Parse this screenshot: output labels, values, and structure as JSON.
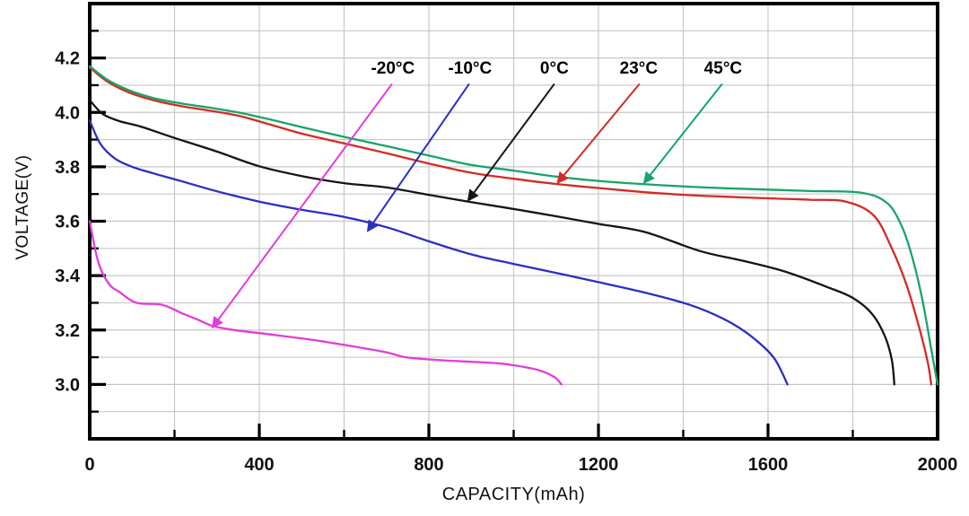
{
  "chart_data": {
    "type": "line",
    "title": "",
    "xlabel": "CAPACITY(mAh)",
    "ylabel": "VOLTAGE(V)",
    "xlim": [
      0,
      2000
    ],
    "ylim": [
      2.8,
      4.4
    ],
    "grid": true,
    "legend_position": "none",
    "x_major_ticks": [
      0,
      400,
      800,
      1200,
      1600,
      2000
    ],
    "x_minor_ticks": [
      200,
      600,
      1000,
      1400,
      1800
    ],
    "y_major_ticks": [
      3.0,
      3.2,
      3.4,
      3.6,
      3.8,
      4.0,
      4.2
    ],
    "y_minor_ticks": [
      2.9,
      3.1,
      3.3,
      3.5,
      3.7,
      3.9,
      4.1,
      4.3
    ],
    "x_gridlines": [
      200,
      400,
      600,
      800,
      1000,
      1200,
      1400,
      1600,
      1800
    ],
    "y_gridlines": [
      2.9,
      3.0,
      3.1,
      3.2,
      3.3,
      3.4,
      3.5,
      3.6,
      3.7,
      3.8,
      3.9,
      4.0,
      4.1,
      4.2,
      4.3
    ],
    "colors": {
      "grid": "#c7c7c7",
      "axis": "#000000",
      "background": "#ffffff",
      "minus20c": "#e13ddb",
      "minus10c": "#2b2fc0",
      "zero_c": "#151515",
      "c23": "#d32b24",
      "c45": "#17a567"
    },
    "series": [
      {
        "name": "-20°C",
        "slug": "minus-20c",
        "color": "#e13ddb",
        "points": [
          [
            0,
            3.6
          ],
          [
            20,
            3.45
          ],
          [
            45,
            3.37
          ],
          [
            70,
            3.34
          ],
          [
            110,
            3.3
          ],
          [
            170,
            3.293
          ],
          [
            220,
            3.26
          ],
          [
            255,
            3.238
          ],
          [
            290,
            3.215
          ],
          [
            340,
            3.2
          ],
          [
            420,
            3.185
          ],
          [
            520,
            3.165
          ],
          [
            620,
            3.14
          ],
          [
            700,
            3.118
          ],
          [
            745,
            3.1
          ],
          [
            820,
            3.09
          ],
          [
            900,
            3.083
          ],
          [
            960,
            3.078
          ],
          [
            1010,
            3.068
          ],
          [
            1060,
            3.052
          ],
          [
            1095,
            3.028
          ],
          [
            1113,
            3.0
          ]
        ]
      },
      {
        "name": "-10°C",
        "slug": "minus-10c",
        "color": "#2b2fc0",
        "points": [
          [
            0,
            3.97
          ],
          [
            25,
            3.885
          ],
          [
            60,
            3.83
          ],
          [
            100,
            3.8
          ],
          [
            150,
            3.776
          ],
          [
            210,
            3.75
          ],
          [
            300,
            3.71
          ],
          [
            400,
            3.672
          ],
          [
            500,
            3.642
          ],
          [
            600,
            3.616
          ],
          [
            700,
            3.578
          ],
          [
            800,
            3.526
          ],
          [
            900,
            3.478
          ],
          [
            1000,
            3.443
          ],
          [
            1100,
            3.41
          ],
          [
            1200,
            3.376
          ],
          [
            1300,
            3.341
          ],
          [
            1400,
            3.3
          ],
          [
            1460,
            3.266
          ],
          [
            1520,
            3.22
          ],
          [
            1570,
            3.165
          ],
          [
            1615,
            3.095
          ],
          [
            1646,
            3.0
          ]
        ]
      },
      {
        "name": "0°C",
        "slug": "0c",
        "color": "#151515",
        "points": [
          [
            0,
            4.045
          ],
          [
            30,
            3.995
          ],
          [
            70,
            3.968
          ],
          [
            120,
            3.948
          ],
          [
            200,
            3.906
          ],
          [
            300,
            3.856
          ],
          [
            400,
            3.802
          ],
          [
            500,
            3.766
          ],
          [
            600,
            3.74
          ],
          [
            700,
            3.724
          ],
          [
            800,
            3.697
          ],
          [
            900,
            3.67
          ],
          [
            1000,
            3.645
          ],
          [
            1100,
            3.618
          ],
          [
            1200,
            3.59
          ],
          [
            1310,
            3.56
          ],
          [
            1440,
            3.49
          ],
          [
            1540,
            3.455
          ],
          [
            1640,
            3.415
          ],
          [
            1740,
            3.358
          ],
          [
            1800,
            3.318
          ],
          [
            1845,
            3.26
          ],
          [
            1875,
            3.18
          ],
          [
            1892,
            3.09
          ],
          [
            1898,
            3.0
          ]
        ]
      },
      {
        "name": "23°C",
        "slug": "23c",
        "color": "#d32b24",
        "points": [
          [
            0,
            4.165
          ],
          [
            40,
            4.115
          ],
          [
            90,
            4.075
          ],
          [
            150,
            4.045
          ],
          [
            220,
            4.022
          ],
          [
            280,
            4.007
          ],
          [
            350,
            3.988
          ],
          [
            420,
            3.958
          ],
          [
            500,
            3.922
          ],
          [
            600,
            3.886
          ],
          [
            700,
            3.85
          ],
          [
            800,
            3.812
          ],
          [
            900,
            3.778
          ],
          [
            1000,
            3.756
          ],
          [
            1100,
            3.737
          ],
          [
            1200,
            3.722
          ],
          [
            1300,
            3.708
          ],
          [
            1400,
            3.697
          ],
          [
            1500,
            3.69
          ],
          [
            1600,
            3.684
          ],
          [
            1700,
            3.679
          ],
          [
            1784,
            3.672
          ],
          [
            1850,
            3.62
          ],
          [
            1892,
            3.5
          ],
          [
            1928,
            3.36
          ],
          [
            1958,
            3.2
          ],
          [
            1977,
            3.08
          ],
          [
            1985,
            3.0
          ]
        ]
      },
      {
        "name": "45°C",
        "slug": "45c",
        "color": "#17a567",
        "points": [
          [
            0,
            4.17
          ],
          [
            40,
            4.122
          ],
          [
            90,
            4.083
          ],
          [
            150,
            4.053
          ],
          [
            220,
            4.032
          ],
          [
            280,
            4.018
          ],
          [
            350,
            4.0
          ],
          [
            420,
            3.976
          ],
          [
            500,
            3.946
          ],
          [
            600,
            3.91
          ],
          [
            700,
            3.876
          ],
          [
            800,
            3.841
          ],
          [
            900,
            3.807
          ],
          [
            1000,
            3.786
          ],
          [
            1100,
            3.764
          ],
          [
            1200,
            3.748
          ],
          [
            1300,
            3.737
          ],
          [
            1400,
            3.728
          ],
          [
            1500,
            3.721
          ],
          [
            1600,
            3.716
          ],
          [
            1700,
            3.711
          ],
          [
            1820,
            3.705
          ],
          [
            1880,
            3.668
          ],
          [
            1913,
            3.59
          ],
          [
            1938,
            3.48
          ],
          [
            1963,
            3.32
          ],
          [
            1985,
            3.13
          ],
          [
            2000,
            3.0
          ]
        ]
      }
    ],
    "annotations": [
      {
        "label": "-20°C",
        "slug": "minus-20c",
        "color": "#e13ddb",
        "label_x": 715,
        "label_y": 4.16,
        "arrow": {
          "x1": 713,
          "y1": 4.105,
          "x2": 290,
          "y2": 3.21
        }
      },
      {
        "label": "-10°C",
        "slug": "minus-10c",
        "color": "#2b2fc0",
        "label_x": 897,
        "label_y": 4.16,
        "arrow": {
          "x1": 895,
          "y1": 4.105,
          "x2": 656,
          "y2": 3.565
        }
      },
      {
        "label": "0°C",
        "slug": "0c",
        "color": "#151515",
        "label_x": 1096,
        "label_y": 4.16,
        "arrow": {
          "x1": 1096,
          "y1": 4.105,
          "x2": 893,
          "y2": 3.677
        }
      },
      {
        "label": "23°C",
        "slug": "23c",
        "color": "#d32b24",
        "label_x": 1295,
        "label_y": 4.16,
        "arrow": {
          "x1": 1297,
          "y1": 4.105,
          "x2": 1104,
          "y2": 3.742
        }
      },
      {
        "label": "45°C",
        "slug": "45c",
        "color": "#17a567",
        "label_x": 1494,
        "label_y": 4.16,
        "arrow": {
          "x1": 1492,
          "y1": 4.105,
          "x2": 1308,
          "y2": 3.742
        }
      }
    ]
  }
}
